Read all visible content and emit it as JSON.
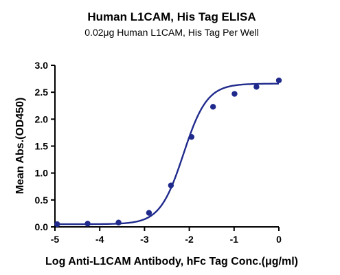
{
  "chart_data": {
    "type": "scatter",
    "title": "Human L1CAM, His Tag ELISA",
    "subtitle": "0.02μg Human L1CAM, His Tag Per Well",
    "xlabel": "Log Anti-L1CAM Antibody, hFc Tag Conc.(μg/ml)",
    "ylabel": "Mean Abs.(OD450)",
    "xlim": [
      -5,
      0
    ],
    "ylim": [
      0,
      3.0
    ],
    "xticks": [
      -5,
      -4,
      -3,
      -2,
      -1,
      0
    ],
    "yticks": [
      0.0,
      0.5,
      1.0,
      1.5,
      2.0,
      2.5,
      3.0
    ],
    "xtick_labels": [
      "-5",
      "-4",
      "-3",
      "-2",
      "-1",
      "0"
    ],
    "ytick_labels": [
      "0.0",
      "0.5",
      "1.0",
      "1.5",
      "2.0",
      "2.5",
      "3.0"
    ],
    "grid": false,
    "series": [
      {
        "color": "#1f2a8c",
        "x": [
          -4.95,
          -4.27,
          -3.58,
          -2.9,
          -2.41,
          -1.95,
          -1.47,
          -0.99,
          -0.5,
          0.0
        ],
        "y": [
          0.05,
          0.06,
          0.08,
          0.26,
          0.77,
          1.67,
          2.23,
          2.47,
          2.6,
          2.72
        ]
      }
    ],
    "fit": {
      "model": "4PL",
      "bottom": 0.05,
      "top": 2.66,
      "logEC50": -2.13,
      "hill": 1.65,
      "color": "#1f2a8c"
    }
  }
}
